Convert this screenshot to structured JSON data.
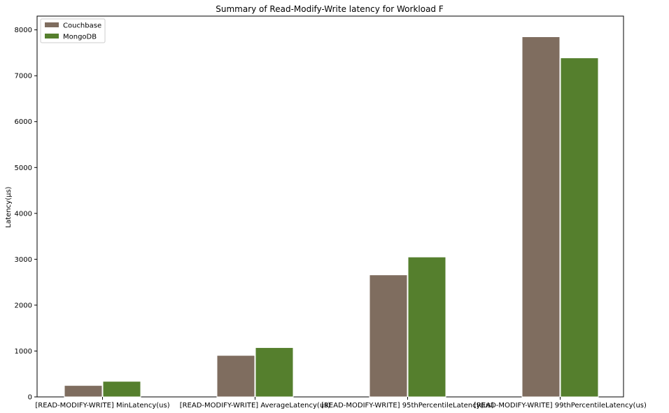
{
  "chart_data": {
    "type": "bar",
    "title": "Summary of Read-Modify-Write latency for Workload F",
    "xlabel": "",
    "ylabel": "Latency(µs)",
    "categories": [
      "[READ-MODIFY-WRITE] MinLatency(us)",
      "[READ-MODIFY-WRITE] AverageLatency(us)",
      "[READ-MODIFY-WRITE] 95thPercentileLatency(us)",
      "[READ-MODIFY-WRITE] 99thPercentileLatency(us)"
    ],
    "series": [
      {
        "name": "Couchbase",
        "color": "#7f6d5f",
        "values": [
          250,
          905,
          2660,
          7850
        ]
      },
      {
        "name": "MongoDB",
        "color": "#557f2d",
        "values": [
          340,
          1075,
          3050,
          7390
        ]
      }
    ],
    "ylim": [
      0,
      8300
    ],
    "yticks": [
      0,
      1000,
      2000,
      3000,
      4000,
      5000,
      6000,
      7000,
      8000
    ],
    "grid": false,
    "legend": "top-left"
  }
}
